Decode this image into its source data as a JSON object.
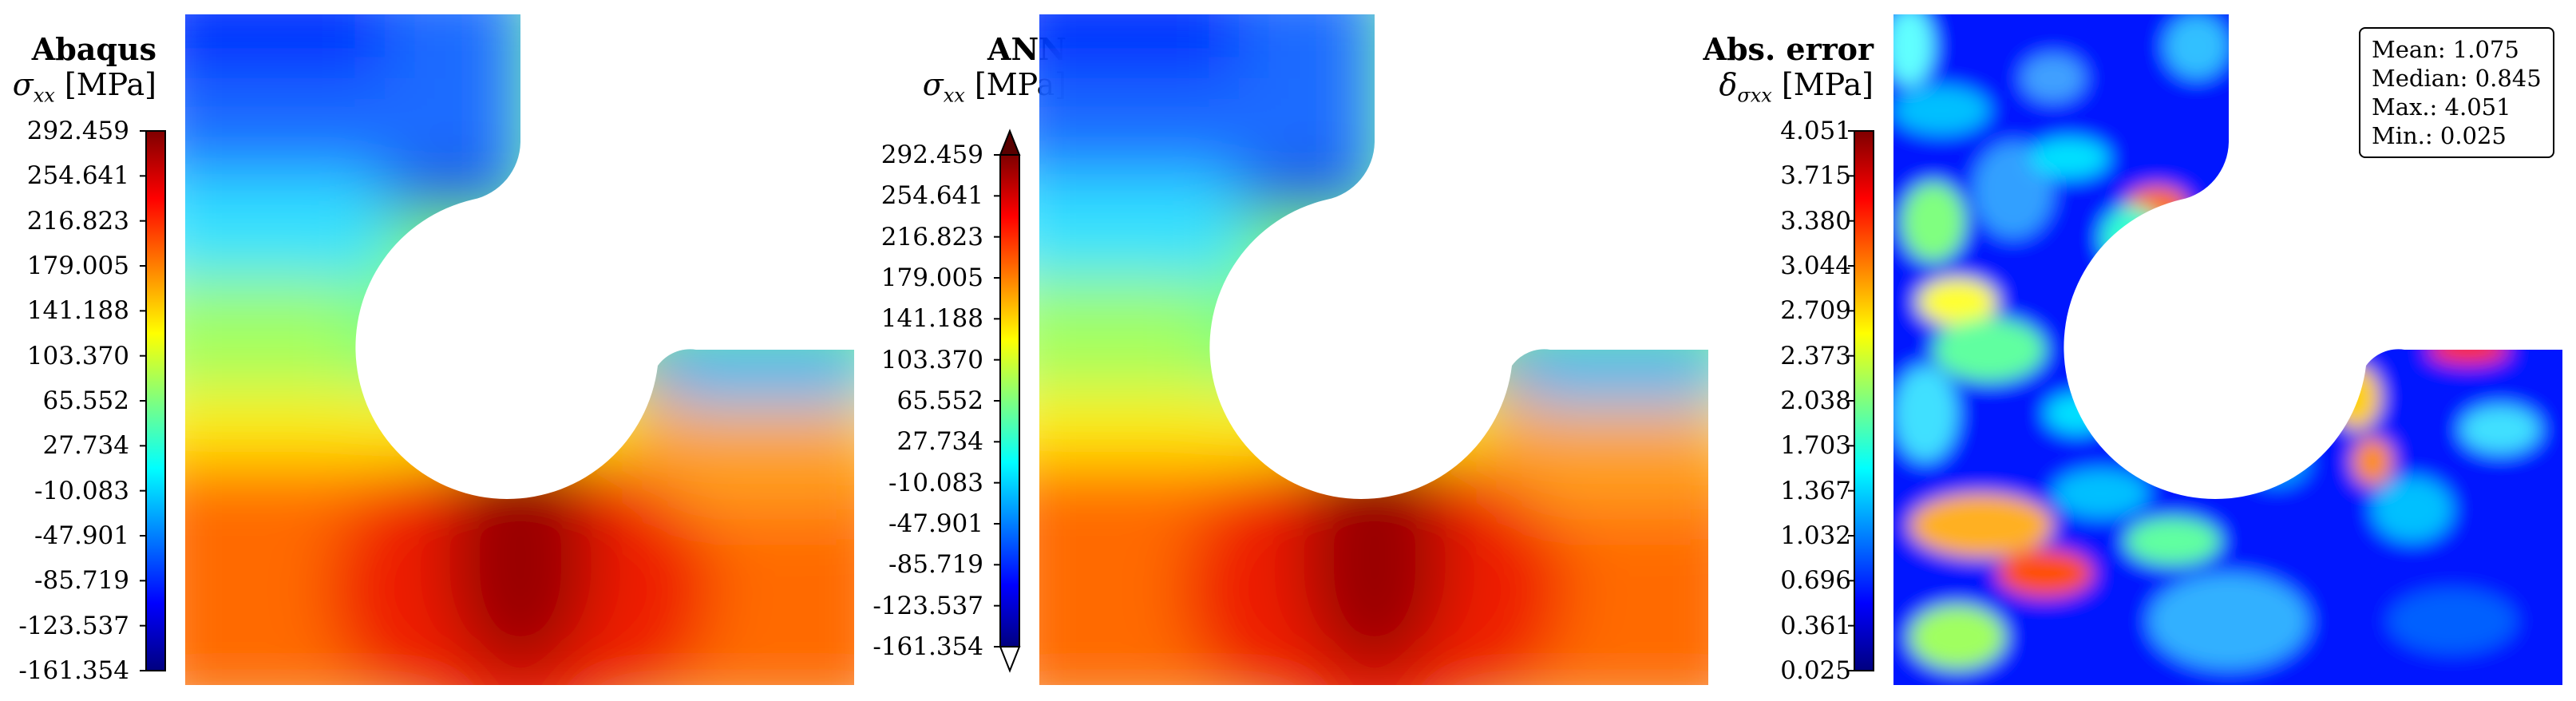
{
  "colormap": [
    "#00007f",
    "#0000ff",
    "#007fff",
    "#00ffff",
    "#7fff7f",
    "#ffff00",
    "#ff7f00",
    "#ff0000",
    "#7f0000"
  ],
  "chart_data": [
    {
      "type": "heatmap",
      "title": "Abaqus",
      "quantity": "σ",
      "quantity_sub": "xx",
      "unit": "[MPa]",
      "colorbar_ticks": [
        "292.459",
        "254.641",
        "216.823",
        "179.005",
        "141.188",
        "103.370",
        "65.552",
        "27.734",
        "-10.083",
        "-47.901",
        "-85.719",
        "-123.537",
        "-161.354"
      ],
      "range": [
        -161.354,
        292.459
      ],
      "extend_arrows": false
    },
    {
      "type": "heatmap",
      "title": "ANN",
      "quantity": "σ",
      "quantity_sub": "xx",
      "unit": "[MPa]",
      "colorbar_ticks": [
        "292.459",
        "254.641",
        "216.823",
        "179.005",
        "141.188",
        "103.370",
        "65.552",
        "27.734",
        "-10.083",
        "-47.901",
        "-85.719",
        "-123.537",
        "-161.354"
      ],
      "range": [
        -161.354,
        292.459
      ],
      "extend_arrows": true
    },
    {
      "type": "heatmap",
      "title": "Abs. error",
      "quantity": "δ",
      "quantity_sub": "σxx",
      "unit": "[MPa]",
      "colorbar_ticks": [
        "4.051",
        "3.715",
        "3.380",
        "3.044",
        "2.709",
        "2.373",
        "2.038",
        "1.703",
        "1.367",
        "1.032",
        "0.696",
        "0.361",
        "0.025"
      ],
      "range": [
        0.025,
        4.051
      ],
      "extend_arrows": false,
      "stats": {
        "mean": "Mean: 1.075",
        "median": "Median: 0.845",
        "max": "Max.: 4.051",
        "min": "Min.: 0.025"
      }
    }
  ]
}
